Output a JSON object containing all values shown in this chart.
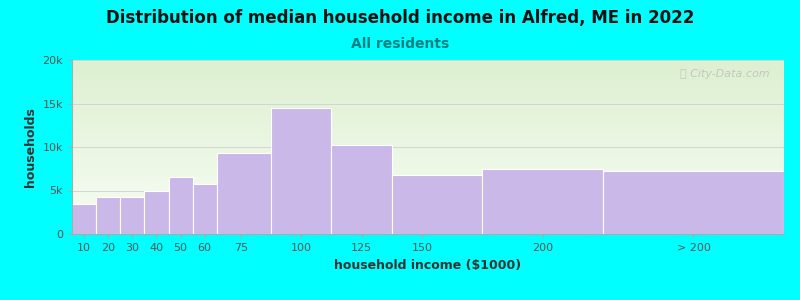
{
  "title": "Distribution of median household income in Alfred, ME in 2022",
  "subtitle": "All residents",
  "xlabel": "household income ($1000)",
  "ylabel": "households",
  "background_color": "#00FFFF",
  "plot_bg_top": "#ddf0d0",
  "plot_bg_bottom": "#f8fdf5",
  "bar_color": "#c9b8e8",
  "bar_edge_color": "#ffffff",
  "categories": [
    "10",
    "20",
    "30",
    "40",
    "50",
    "60",
    "75",
    "100",
    "125",
    "150",
    "200",
    "> 200"
  ],
  "values": [
    3500,
    4200,
    4300,
    5000,
    6500,
    5800,
    9300,
    14500,
    10200,
    6800,
    7500,
    7200
  ],
  "bar_lefts": [
    5,
    15,
    25,
    35,
    45,
    55,
    65,
    87.5,
    112.5,
    137.5,
    175,
    225
  ],
  "bar_widths": [
    10,
    10,
    10,
    10,
    10,
    10,
    22.5,
    25,
    25,
    37.5,
    50,
    75
  ],
  "ylim": [
    0,
    20000
  ],
  "yticks": [
    0,
    5000,
    10000,
    15000,
    20000
  ],
  "ytick_labels": [
    "0",
    "5k",
    "10k",
    "15k",
    "20k"
  ],
  "xtick_positions": [
    10,
    20,
    30,
    40,
    50,
    60,
    75,
    100,
    125,
    150,
    200,
    262.5
  ],
  "xtick_labels": [
    "10",
    "20",
    "30",
    "40",
    "50",
    "60",
    "75",
    "100",
    "125",
    "150",
    "200",
    "> 200"
  ],
  "xlim": [
    5,
    300
  ],
  "title_fontsize": 12,
  "subtitle_fontsize": 10,
  "subtitle_color": "#008080",
  "axis_label_fontsize": 9,
  "tick_fontsize": 8,
  "watermark_text": "ⓘ City-Data.com",
  "grid_color": "#d0d0d0",
  "title_color": "#111111"
}
